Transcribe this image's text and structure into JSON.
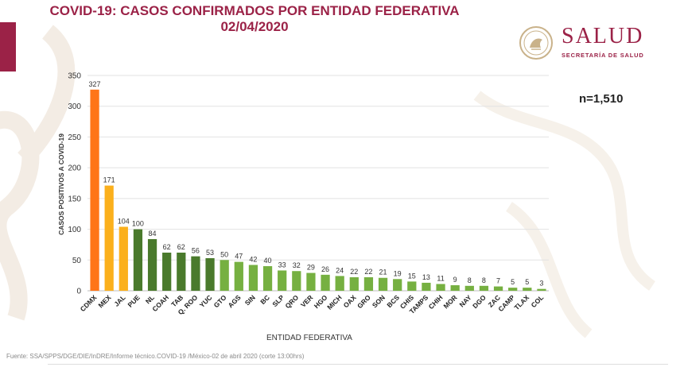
{
  "header": {
    "title_line1": "COVID-19: CASOS CONFIRMADOS POR ENTIDAD FEDERATIVA",
    "title_line2": "02/04/2020"
  },
  "logo": {
    "name": "SALUD",
    "subtitle": "SECRETARÍA DE SALUD"
  },
  "summary": {
    "n_text": "n=1,510"
  },
  "footer": {
    "source": "Fuente: SSA/SPPS/DGE/DIE/InDRE/Informe técnico.COVID-19 /México-02 de abril 2020 (corte 13:00hrs)"
  },
  "colors": {
    "brand": "#9b2247",
    "top1": "#ff7518",
    "top23": "#fbb01c",
    "dark_green": "#4a7a2c",
    "light_green": "#76b041"
  },
  "chart_data": {
    "type": "bar",
    "title": "COVID-19: CASOS CONFIRMADOS POR ENTIDAD FEDERATIVA",
    "xlabel": "ENTIDAD FEDERATIVA",
    "ylabel": "CASOS POSITIVOS A COVID-19",
    "ylim": [
      0,
      350
    ],
    "yticks": [
      0,
      50,
      100,
      150,
      200,
      250,
      300,
      350
    ],
    "grid": true,
    "categories": [
      "CDMX",
      "MEX",
      "JAL",
      "PUE",
      "NL",
      "COAH",
      "TAB",
      "Q. ROO",
      "YUC",
      "GTO",
      "AGS",
      "SIN",
      "BC",
      "SLP",
      "QRO",
      "VER",
      "HGO",
      "MICH",
      "OAX",
      "GRO",
      "SON",
      "BCS",
      "CHIS",
      "TAMPS",
      "CHIH",
      "MOR",
      "NAY",
      "DGO",
      "ZAC",
      "CAMP",
      "TLAX",
      "COL"
    ],
    "values": [
      327,
      171,
      104,
      100,
      84,
      62,
      62,
      56,
      53,
      50,
      47,
      42,
      40,
      33,
      32,
      29,
      26,
      24,
      22,
      22,
      21,
      19,
      15,
      13,
      11,
      9,
      8,
      8,
      7,
      5,
      5,
      3
    ],
    "bar_colors": [
      "#ff7518",
      "#fbb01c",
      "#fbb01c",
      "#4a7a2c",
      "#4a7a2c",
      "#4a7a2c",
      "#4a7a2c",
      "#4a7a2c",
      "#4a7a2c",
      "#76b041",
      "#76b041",
      "#76b041",
      "#76b041",
      "#76b041",
      "#76b041",
      "#76b041",
      "#76b041",
      "#76b041",
      "#76b041",
      "#76b041",
      "#76b041",
      "#76b041",
      "#76b041",
      "#76b041",
      "#76b041",
      "#76b041",
      "#76b041",
      "#76b041",
      "#76b041",
      "#76b041",
      "#76b041",
      "#76b041"
    ],
    "total_label": "n=1,510"
  }
}
